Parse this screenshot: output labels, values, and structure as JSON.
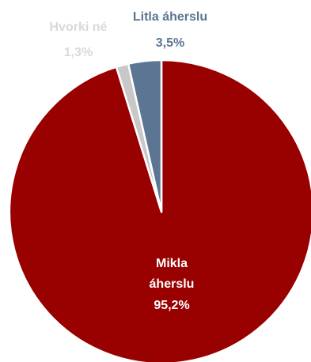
{
  "chart_data": {
    "type": "pie",
    "title": "",
    "slices": [
      {
        "label": "Mikla áherslu",
        "value": 95.2,
        "value_label": "95,2%",
        "color": "#990000",
        "label_color": "#ffffff"
      },
      {
        "label": "Hvorki né",
        "value": 1.3,
        "value_label": "1,3%",
        "color": "#c8c8c8",
        "label_color": "#d9d9d9"
      },
      {
        "label": "Litla áherslu",
        "value": 3.5,
        "value_label": "3,5%",
        "color": "#5b7593",
        "label_color": "#5b7593"
      }
    ],
    "legend": "none"
  }
}
